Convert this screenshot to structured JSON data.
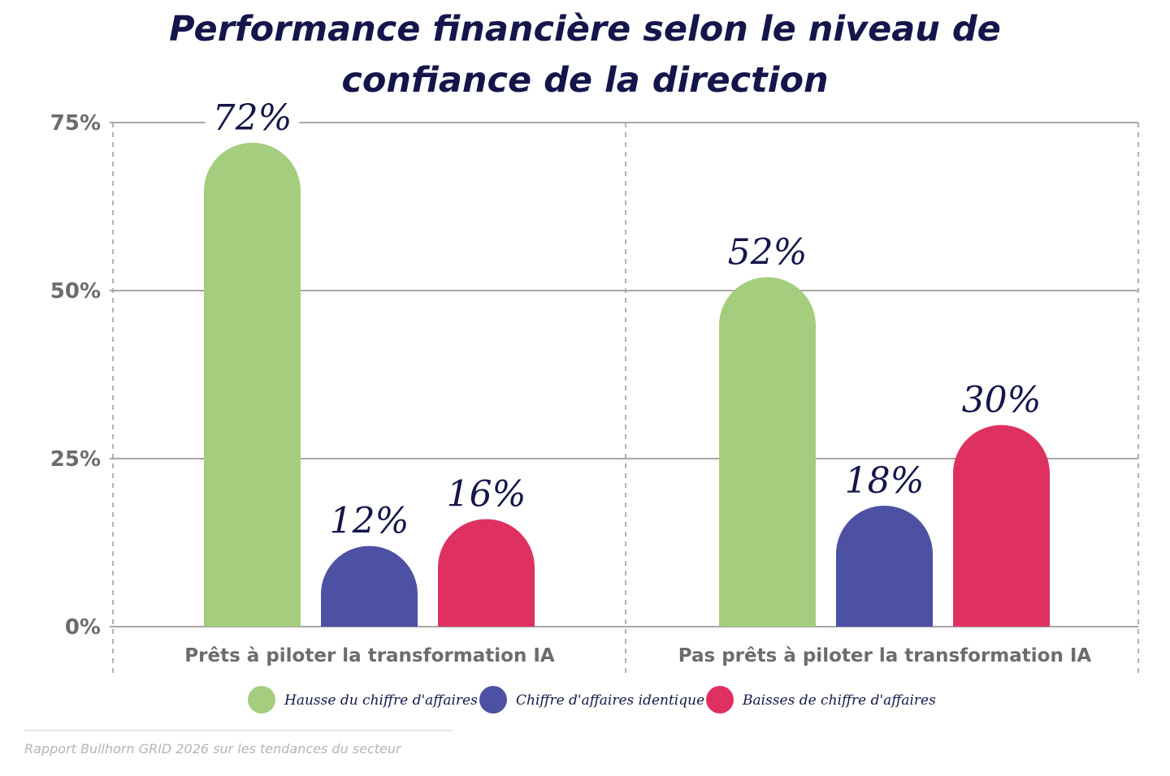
{
  "chart_data": {
    "type": "bar",
    "title_lines": [
      "Performance financière selon le niveau de",
      "confiance de la direction"
    ],
    "categories": [
      "Prêts à piloter la transformation IA",
      "Pas prêts à piloter la transformation IA"
    ],
    "series": [
      {
        "name": "Hausse du chiffre d'affaires",
        "color": "#a4cd7d",
        "values": [
          72,
          52
        ]
      },
      {
        "name": "Chiffre d'affaires identique",
        "color": "#4c51a3",
        "values": [
          12,
          18
        ]
      },
      {
        "name": "Baisses de chiffre d'affaires",
        "color": "#de3162",
        "values": [
          16,
          30
        ]
      }
    ],
    "value_labels": [
      [
        "72%",
        "52%"
      ],
      [
        "12%",
        "18%"
      ],
      [
        "16%",
        "30%"
      ]
    ],
    "yticks": [
      {
        "value": 0,
        "label": "0%"
      },
      {
        "value": 25,
        "label": "25%"
      },
      {
        "value": 50,
        "label": "50%"
      },
      {
        "value": 75,
        "label": "75%"
      }
    ],
    "ylim": [
      0,
      75
    ],
    "grid": true,
    "legend_position": "bottom-center",
    "source": "Rapport Bullhorn GRID 2026 sur les tendances du secteur"
  }
}
